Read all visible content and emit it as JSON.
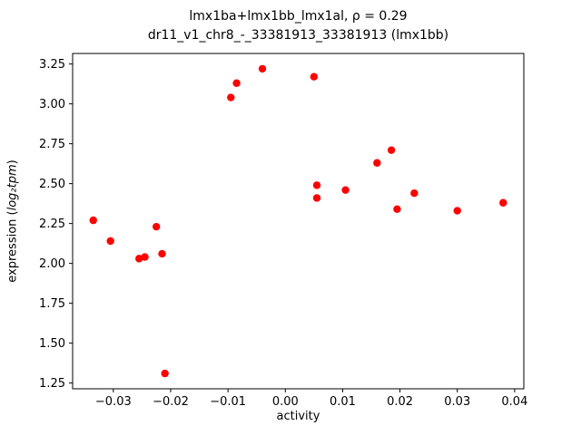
{
  "chart_data": {
    "type": "scatter",
    "title_line1": "lmx1ba+lmx1bb_lmx1al, ρ = 0.29",
    "title_line2": "dr11_v1_chr8_-_33381913_33381913 (lmx1bb)",
    "xlabel": "activity",
    "ylabel_prefix": "expression (",
    "ylabel_math": "log₂tpm",
    "ylabel_suffix": ")",
    "marker_color": "#ff0000",
    "marker_radius_px": 4.2,
    "xlim": [
      -0.0371,
      0.0416
    ],
    "ylim": [
      1.214,
      3.316
    ],
    "xtick_values": [
      -0.03,
      -0.02,
      -0.01,
      0.0,
      0.01,
      0.02,
      0.03,
      0.04
    ],
    "xtick_labels": [
      "−0.03",
      "−0.02",
      "−0.01",
      "0.00",
      "0.01",
      "0.02",
      "0.03",
      "0.04"
    ],
    "ytick_values": [
      1.25,
      1.5,
      1.75,
      2.0,
      2.25,
      2.5,
      2.75,
      3.0,
      3.25
    ],
    "ytick_labels": [
      "1.25",
      "1.50",
      "1.75",
      "2.00",
      "2.25",
      "2.50",
      "2.75",
      "3.00",
      "3.25"
    ],
    "grid": false,
    "legend": "none",
    "points": [
      [
        -0.0335,
        2.27
      ],
      [
        -0.0305,
        2.14
      ],
      [
        -0.0255,
        2.03
      ],
      [
        -0.0245,
        2.04
      ],
      [
        -0.0225,
        2.23
      ],
      [
        -0.0215,
        2.06
      ],
      [
        -0.021,
        1.31
      ],
      [
        -0.0095,
        3.04
      ],
      [
        -0.0085,
        3.13
      ],
      [
        -0.004,
        3.22
      ],
      [
        0.005,
        3.17
      ],
      [
        0.0055,
        2.49
      ],
      [
        0.0055,
        2.41
      ],
      [
        0.0105,
        2.46
      ],
      [
        0.016,
        2.63
      ],
      [
        0.0185,
        2.71
      ],
      [
        0.0195,
        2.34
      ],
      [
        0.0225,
        2.44
      ],
      [
        0.03,
        2.33
      ],
      [
        0.038,
        2.38
      ]
    ]
  }
}
